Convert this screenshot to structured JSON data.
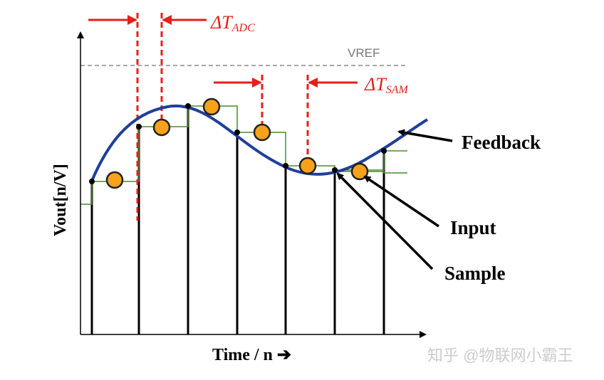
{
  "labels": {
    "vref": "VREF",
    "delta_t_adc_symbol": "ΔT",
    "delta_t_adc_sub": "ADC",
    "delta_t_sam_symbol": "ΔT",
    "delta_t_sam_sub": "SAM",
    "feedback": "Feedback",
    "input": "Input",
    "sample": "Sample",
    "y_axis": "Vout[n/V]",
    "x_axis": "Time / n ➔",
    "watermark": "知乎 @物联网小霸王"
  },
  "colors": {
    "curve": "#1f3f99",
    "step": "#4c8a2c",
    "marker": "#f7a21b",
    "marker_stroke": "#222222",
    "timing": "#e3201b",
    "vref_line": "#888888",
    "axis": "#000000",
    "vref_text": "#777777",
    "watermark": "#cccccc"
  }
}
